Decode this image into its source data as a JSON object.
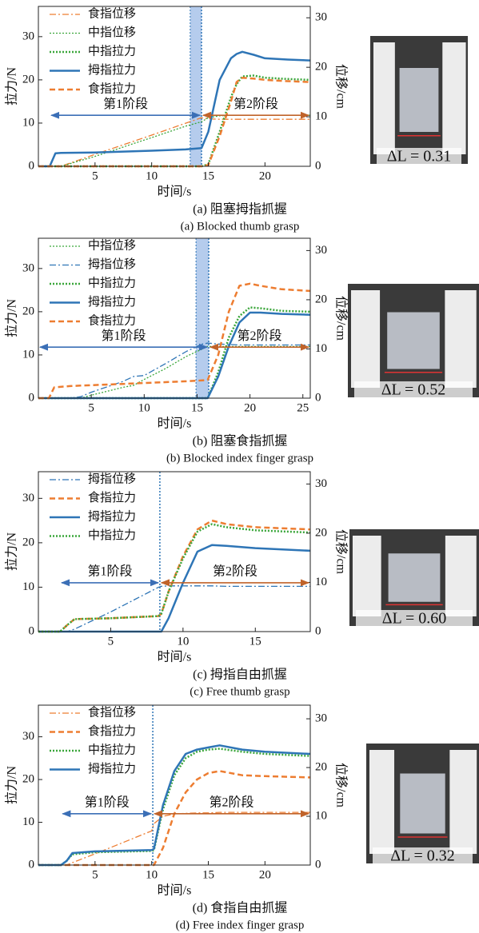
{
  "chart_data": [
    {
      "type": "line",
      "x_label": "时间/s",
      "y_label": "拉力/N",
      "y2_label": "位移/cm",
      "caption_cn": "(a) 阻塞拇指抓握",
      "caption_en": "(a) Blocked thumb grasp",
      "photo_label": "ΔL = 0.31",
      "stage_labels": [
        "第1阶段",
        "第2阶段"
      ],
      "divider": 14.4,
      "shaded_span": [
        13.4,
        14.4
      ],
      "xlim": [
        0,
        24
      ],
      "xticks": [
        5,
        10,
        15,
        20
      ],
      "ylim": [
        0,
        37
      ],
      "yticks": [
        0,
        10,
        20,
        30
      ],
      "y2lim": [
        0,
        32.3
      ],
      "y2ticks": [
        0,
        10,
        20,
        30
      ],
      "x": [
        0,
        1,
        1.5,
        2,
        5,
        10,
        13,
        14.4,
        15,
        16,
        17,
        17.5,
        18,
        19,
        20,
        22,
        24
      ],
      "series": [
        {
          "name": "食指位移",
          "color": "#ed7d31",
          "style": "dashdot",
          "axis": "y2",
          "values": [
            0,
            0,
            0,
            0,
            2.4,
            6.3,
            8.7,
            9.8,
            9.6,
            9.5,
            9.5,
            9.5,
            9.5,
            9.5,
            9.5,
            9.5,
            9.5
          ]
        },
        {
          "name": "中指位移",
          "color": "#3aa63a",
          "style": "dotted",
          "axis": "y2",
          "values": [
            0,
            0,
            0,
            0,
            2.0,
            5.8,
            8.1,
            9.0,
            9.8,
            10.2,
            10.3,
            10.3,
            10.3,
            10.3,
            10.3,
            10.3,
            10.3
          ]
        },
        {
          "name": "中指拉力",
          "color": "#3aa63a",
          "style": "dotted",
          "values": [
            0,
            0,
            0,
            0,
            0,
            0,
            0,
            0,
            0.5,
            8,
            16,
            19,
            20.8,
            21,
            20.5,
            20.2,
            20
          ]
        },
        {
          "name": "拇指拉力",
          "color": "#2e75b6",
          "style": "solid",
          "values": [
            0,
            0,
            3,
            3.1,
            3.2,
            3.6,
            3.9,
            4.2,
            8,
            20,
            25,
            26,
            26.5,
            25.8,
            25,
            24.7,
            24.5
          ]
        },
        {
          "name": "食指拉力",
          "color": "#ed7d31",
          "style": "dashed",
          "values": [
            0,
            0,
            0,
            0,
            0,
            0,
            0,
            0,
            0.3,
            7,
            15,
            19.5,
            20.5,
            20.3,
            20,
            19.7,
            19.5
          ]
        }
      ]
    },
    {
      "type": "line",
      "x_label": "时间/s",
      "y_label": "拉力/N",
      "y2_label": "位移/cm",
      "caption_cn": "(b) 阻塞食指抓握",
      "caption_en": "(b) Blocked index finger grasp",
      "photo_label": "ΔL = 0.52",
      "stage_labels": [
        "第1阶段",
        "第2阶段"
      ],
      "divider": 16.1,
      "shaded_span": [
        14.9,
        16.1
      ],
      "xlim": [
        0,
        25.7
      ],
      "xticks": [
        5,
        10,
        15,
        20,
        25
      ],
      "ylim": [
        0,
        37
      ],
      "yticks": [
        0,
        10,
        20,
        30
      ],
      "y2lim": [
        0,
        32.5
      ],
      "y2ticks": [
        0,
        10,
        20,
        30
      ],
      "x": [
        0,
        1,
        1.5,
        3,
        4,
        5,
        8,
        9,
        10,
        12,
        14,
        15.5,
        16,
        17,
        18,
        19,
        20,
        21,
        23,
        25.7
      ],
      "series": [
        {
          "name": "中指位移",
          "color": "#3aa63a",
          "style": "dotted",
          "axis": "y2",
          "values": [
            0,
            0,
            0,
            0,
            0,
            0.6,
            2.2,
            2.6,
            3.8,
            6,
            8.5,
            10,
            10.5,
            10.5,
            10.5,
            10.5,
            10.5,
            10.5,
            10.5,
            10.5
          ]
        },
        {
          "name": "拇指位移",
          "color": "#2e75b6",
          "style": "dashdot",
          "axis": "y2",
          "values": [
            0,
            0,
            0,
            0,
            0.3,
            1.2,
            3.4,
            4.4,
            4.6,
            7,
            9.5,
            11,
            11.2,
            11,
            10.9,
            10.8,
            10.8,
            10.8,
            10.8,
            10.8
          ]
        },
        {
          "name": "中指拉力",
          "color": "#3aa63a",
          "style": "dotted",
          "values": [
            0,
            0,
            0,
            0,
            0,
            0,
            0,
            0,
            0,
            0,
            0,
            0,
            0,
            6,
            14,
            19,
            21,
            20.8,
            20.2,
            20
          ]
        },
        {
          "name": "拇指拉力",
          "color": "#2e75b6",
          "style": "solid",
          "values": [
            0,
            0,
            0,
            0,
            0,
            0,
            0,
            0,
            0,
            0,
            0,
            0,
            0,
            5,
            12,
            17.5,
            19.8,
            19.8,
            19.5,
            19.3
          ]
        },
        {
          "name": "食指拉力",
          "color": "#ed7d31",
          "style": "dashed",
          "values": [
            0,
            0,
            2.5,
            2.8,
            2.9,
            3,
            3.3,
            3.4,
            3.5,
            3.7,
            3.9,
            4.1,
            4.2,
            10,
            20,
            26,
            26.5,
            26,
            25.2,
            24.8
          ]
        }
      ]
    },
    {
      "type": "line",
      "x_label": "时间/s",
      "y_label": "拉力/N",
      "y2_label": "位移/cm",
      "caption_cn": "(c) 拇指自由抓握",
      "caption_en": "(c) Free thumb grasp",
      "photo_label": "ΔL = 0.60",
      "stage_labels": [
        "第1阶段",
        "第2阶段"
      ],
      "divider": 8.4,
      "xlim": [
        0,
        18.8
      ],
      "xticks": [
        5,
        10,
        15
      ],
      "ylim": [
        0,
        36
      ],
      "yticks": [
        0,
        10,
        20,
        30
      ],
      "y2lim": [
        0,
        32.5
      ],
      "y2ticks": [
        0,
        10,
        20,
        30
      ],
      "x": [
        0,
        1.5,
        2,
        2.5,
        5,
        8.3,
        8.5,
        9,
        10,
        11,
        12,
        13,
        15,
        18.8
      ],
      "series": [
        {
          "name": "拇指位移",
          "color": "#2e75b6",
          "style": "dashdot",
          "axis": "y2",
          "values": [
            0,
            0,
            0,
            0.5,
            4,
            9,
            9.2,
            9.3,
            9.3,
            9.3,
            9.3,
            9.2,
            9.2,
            9.2
          ]
        },
        {
          "name": "食指拉力",
          "color": "#ed7d31",
          "style": "dashed",
          "values": [
            0,
            0,
            1.5,
            2.8,
            3,
            3.5,
            4,
            9,
            17,
            23,
            25,
            24.2,
            23.5,
            23
          ]
        },
        {
          "name": "拇指拉力",
          "color": "#2e75b6",
          "style": "solid",
          "values": [
            0,
            0,
            0,
            0,
            0,
            0,
            0,
            3,
            11,
            18,
            19.5,
            19.3,
            18.8,
            18.2
          ]
        },
        {
          "name": "中指拉力",
          "color": "#3aa63a",
          "style": "dotted",
          "values": [
            0,
            0,
            1.5,
            2.8,
            3,
            3.5,
            4,
            9,
            16.5,
            22.5,
            24.2,
            23.5,
            22.8,
            22.3
          ]
        }
      ]
    },
    {
      "type": "line",
      "x_label": "时间/s",
      "y_label": "拉力/N",
      "y2_label": "位移/cm",
      "caption_cn": "(d) 食指自由抓握",
      "caption_en": "(d) Free index finger grasp",
      "photo_label": "ΔL = 0.32",
      "stage_labels": [
        "第1阶段",
        "第2阶段"
      ],
      "divider": 10.1,
      "xlim": [
        0,
        24
      ],
      "xticks": [
        5,
        10,
        15,
        20
      ],
      "ylim": [
        0,
        37.4
      ],
      "yticks": [
        0,
        10,
        20,
        30
      ],
      "y2lim": [
        0,
        32.8
      ],
      "y2ticks": [
        0,
        10,
        20,
        30
      ],
      "x": [
        0,
        2,
        2.5,
        3,
        5,
        10,
        10.2,
        11,
        12,
        13,
        14,
        15,
        16,
        18,
        20,
        24
      ],
      "series": [
        {
          "name": "食指位移",
          "color": "#ed7d31",
          "style": "dashdot",
          "axis": "y2",
          "values": [
            0,
            0,
            0,
            0.5,
            2.3,
            7,
            8.5,
            10,
            10.5,
            10.6,
            10.7,
            10.7,
            10.8,
            10.8,
            10.8,
            10.8
          ]
        },
        {
          "name": "食指拉力",
          "color": "#ed7d31",
          "style": "dashed",
          "values": [
            0,
            0,
            0,
            0,
            0,
            0,
            0,
            4,
            12,
            17,
            20,
            21.5,
            22,
            21,
            20.8,
            20.5
          ]
        },
        {
          "name": "中指拉力",
          "color": "#3aa63a",
          "style": "dotted",
          "values": [
            0,
            0,
            1,
            2.5,
            3,
            3.3,
            3.5,
            13,
            21,
            25,
            26.5,
            27,
            27.2,
            26.5,
            26,
            25.5
          ]
        },
        {
          "name": "拇指拉力",
          "color": "#2e75b6",
          "style": "solid",
          "values": [
            0,
            0,
            1,
            2.8,
            3.2,
            3.5,
            3.8,
            14,
            22,
            26,
            27,
            27.5,
            28,
            27,
            26.5,
            26
          ]
        }
      ]
    }
  ]
}
